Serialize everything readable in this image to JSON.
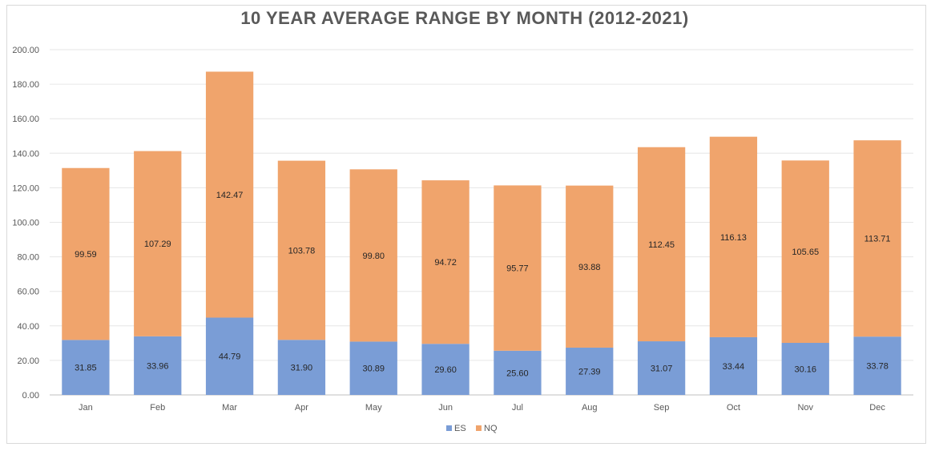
{
  "chart_data": {
    "type": "bar",
    "stacked": true,
    "title": "10 YEAR AVERAGE RANGE BY MONTH (2012-2021)",
    "xlabel": "",
    "ylabel": "",
    "categories": [
      "Jan",
      "Feb",
      "Mar",
      "Apr",
      "May",
      "Jun",
      "Jul",
      "Aug",
      "Sep",
      "Oct",
      "Nov",
      "Dec"
    ],
    "series": [
      {
        "name": "ES",
        "color": "#7a9dd6",
        "values": [
          31.85,
          33.96,
          44.79,
          31.9,
          30.89,
          29.6,
          25.6,
          27.39,
          31.07,
          33.44,
          30.16,
          33.78
        ]
      },
      {
        "name": "NQ",
        "color": "#f0a46c",
        "values": [
          99.59,
          107.29,
          142.47,
          103.78,
          99.8,
          94.72,
          95.77,
          93.88,
          112.45,
          116.13,
          105.65,
          113.71
        ]
      }
    ],
    "ylim": [
      0,
      200
    ],
    "yticks": [
      "0.00",
      "20.00",
      "40.00",
      "60.00",
      "80.00",
      "100.00",
      "120.00",
      "140.00",
      "160.00",
      "180.00",
      "200.00"
    ],
    "data_labels": [
      [
        "31.85",
        "33.96",
        "44.79",
        "31.90",
        "30.89",
        "29.60",
        "25.60",
        "27.39",
        "31.07",
        "33.44",
        "30.16",
        "33.78"
      ],
      [
        "99.59",
        "107.29",
        "142.47",
        "103.78",
        "99.80",
        "94.72",
        "95.77",
        "93.88",
        "112.45",
        "116.13",
        "105.65",
        "113.71"
      ]
    ],
    "grid": true,
    "legend_position": "bottom"
  }
}
